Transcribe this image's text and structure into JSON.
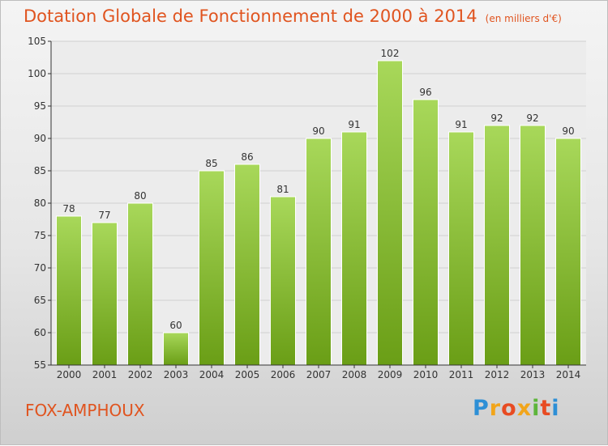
{
  "chart_data": {
    "type": "bar",
    "title": "Dotation Globale de Fonctionnement de 2000 à 2014",
    "subtitle": "(en milliers d'€)",
    "categories": [
      "2000",
      "2001",
      "2002",
      "2003",
      "2004",
      "2005",
      "2006",
      "2007",
      "2008",
      "2009",
      "2010",
      "2011",
      "2012",
      "2013",
      "2014"
    ],
    "values": [
      78,
      77,
      80,
      60,
      85,
      86,
      81,
      90,
      91,
      102,
      96,
      91,
      92,
      92,
      90
    ],
    "ylim": [
      55,
      105
    ],
    "yticks": [
      55,
      60,
      65,
      70,
      75,
      80,
      85,
      90,
      95,
      100,
      105
    ],
    "xlabel": "",
    "ylabel": "",
    "grid": true
  },
  "commune": "FOX-AMPHOUX",
  "brand": {
    "letters": [
      "P",
      "r",
      "o",
      "x",
      "i",
      "t",
      "i"
    ],
    "colors": [
      "#2d8fd6",
      "#f2a51a",
      "#e84b22",
      "#f2a51a",
      "#5db53b",
      "#e84b22",
      "#2d8fd6"
    ]
  },
  "colors": {
    "bar_light": "#a8d85a",
    "bar_dark": "#6a9e16",
    "title": "#e0541f",
    "grid": "#cfcfcf",
    "axis": "#333333"
  }
}
